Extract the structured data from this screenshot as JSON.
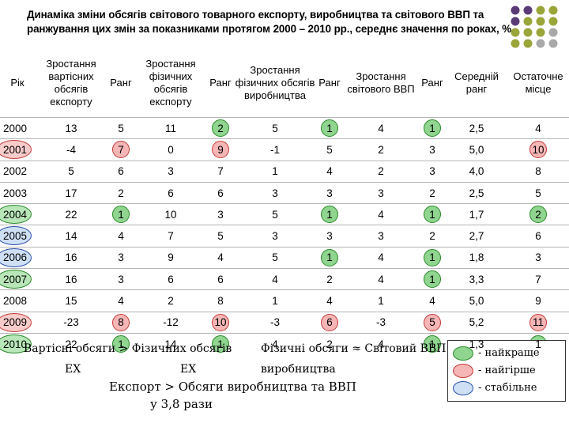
{
  "title": "Динаміка зміни обсягів світового товарного експорту, виробництва та світового ВВП та ранжування цих змін за показниками протягом 2000 – 2010 рр., середнє значення по роках, %",
  "headers": [
    "Рік",
    "Зростання вартісних обсягів експорту",
    "Ранг",
    "Зростання фізичних обсягів експорту",
    "Ранг",
    "Зростання фізичних обсягів виробництва",
    "Ранг",
    "Зростання світового ВВП",
    "Ранг",
    "Середній ранг",
    "Остаточне місце"
  ],
  "rows": [
    {
      "year": "2000",
      "hl": "",
      "cells": [
        "13",
        "5",
        "11",
        "2",
        "5",
        "1",
        "4",
        "1",
        "2,5",
        "4"
      ],
      "marks": [
        "",
        "",
        "",
        "best",
        "",
        "best",
        "",
        "best",
        "",
        ""
      ]
    },
    {
      "year": "2001",
      "hl": "worst",
      "cells": [
        "-4",
        "7",
        "0",
        "9",
        "-1",
        "5",
        "2",
        "3",
        "5,0",
        "10"
      ],
      "marks": [
        "",
        "worst",
        "",
        "worst",
        "",
        "",
        "",
        "",
        "",
        "worst"
      ]
    },
    {
      "year": "2002",
      "hl": "",
      "cells": [
        "5",
        "6",
        "3",
        "7",
        "1",
        "4",
        "2",
        "3",
        "4,0",
        "8"
      ],
      "marks": [
        "",
        "",
        "",
        "",
        "",
        "",
        "",
        "",
        "",
        ""
      ]
    },
    {
      "year": "2003",
      "hl": "",
      "cells": [
        "17",
        "2",
        "6",
        "6",
        "3",
        "3",
        "3",
        "2",
        "2,5",
        "5"
      ],
      "marks": [
        "",
        "",
        "",
        "",
        "",
        "",
        "",
        "",
        "",
        ""
      ]
    },
    {
      "year": "2004",
      "hl": "best",
      "cells": [
        "22",
        "1",
        "10",
        "3",
        "5",
        "1",
        "4",
        "1",
        "1,7",
        "2"
      ],
      "marks": [
        "",
        "best",
        "",
        "",
        "",
        "best",
        "",
        "best",
        "",
        "best"
      ]
    },
    {
      "year": "2005",
      "hl": "stable",
      "cells": [
        "14",
        "4",
        "7",
        "5",
        "3",
        "3",
        "3",
        "2",
        "2,7",
        "6"
      ],
      "marks": [
        "",
        "",
        "",
        "",
        "",
        "",
        "",
        "",
        "",
        ""
      ]
    },
    {
      "year": "2006",
      "hl": "stable",
      "cells": [
        "16",
        "3",
        "9",
        "4",
        "5",
        "1",
        "4",
        "1",
        "1,8",
        "3"
      ],
      "marks": [
        "",
        "",
        "",
        "",
        "",
        "best",
        "",
        "best",
        "",
        ""
      ]
    },
    {
      "year": "2007",
      "hl": "best",
      "cells": [
        "16",
        "3",
        "6",
        "6",
        "4",
        "2",
        "4",
        "1",
        "3,3",
        "7"
      ],
      "marks": [
        "",
        "",
        "",
        "",
        "",
        "",
        "",
        "best",
        "",
        ""
      ]
    },
    {
      "year": "2008",
      "hl": "",
      "cells": [
        "15",
        "4",
        "2",
        "8",
        "1",
        "4",
        "1",
        "4",
        "5,0",
        "9"
      ],
      "marks": [
        "",
        "",
        "",
        "",
        "",
        "",
        "",
        "",
        "",
        ""
      ]
    },
    {
      "year": "2009",
      "hl": "worst",
      "cells": [
        "-23",
        "8",
        "-12",
        "10",
        "-3",
        "6",
        "-3",
        "5",
        "5,2",
        "11"
      ],
      "marks": [
        "",
        "worst",
        "",
        "worst",
        "",
        "worst",
        "",
        "worst",
        "",
        "worst"
      ]
    },
    {
      "year": "2010",
      "hl": "best",
      "cells": [
        "22",
        "1",
        "14",
        "1",
        "4",
        "2",
        "4",
        "1",
        "1,3",
        "1"
      ],
      "marks": [
        "",
        "best",
        "",
        "best",
        "",
        "",
        "",
        "best",
        "",
        "best"
      ]
    }
  ],
  "notes": {
    "left_line1": "Вартісні обсяги > Фізичних обсягів",
    "left_line2a": "ЕХ",
    "left_line2b": "ЕХ",
    "mid_line1": "Фізичні обсяги ≈ Світовий ВВП",
    "mid_line2": "виробництва",
    "bottom_line1": "Експорт > Обсяги виробництва та ВВП",
    "bottom_line2": "у 3,8 рази"
  },
  "legend": [
    {
      "label": "- найкраще",
      "color": "#8fd48f",
      "border": "#2a8a2a"
    },
    {
      "label": "- найгірше",
      "color": "#f6b6b6",
      "border": "#c43a3a"
    },
    {
      "label": "- стабільне",
      "color": "#cfe0f5",
      "border": "#2a4fa8"
    }
  ],
  "colors": {
    "dot_purple": "#5b3a78",
    "dot_olive": "#9aa53a",
    "dot_gray": "#a9a9a9"
  }
}
